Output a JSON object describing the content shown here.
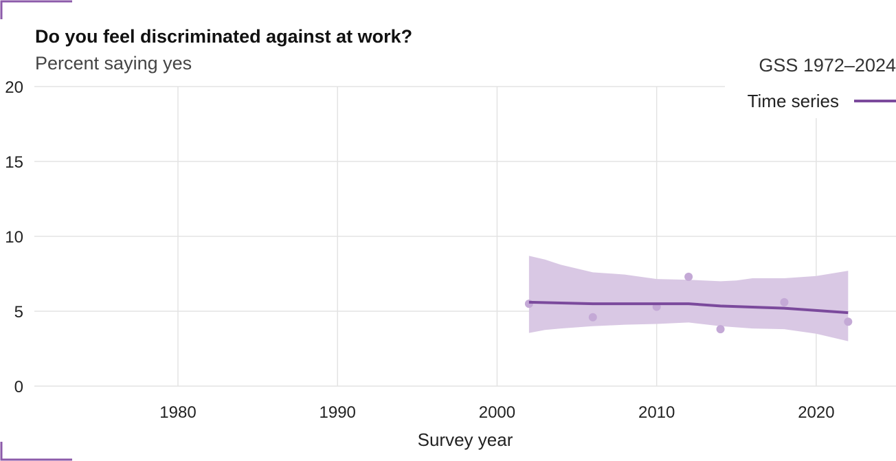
{
  "chart_data": {
    "type": "line",
    "title": "Do you feel discriminated against at work?",
    "subtitle": "Percent saying yes",
    "xlabel": "Survey year",
    "ylabel": "",
    "xlim": [
      1971,
      2025
    ],
    "ylim": [
      0,
      20
    ],
    "x_ticks": [
      1980,
      1990,
      2000,
      2010,
      2020
    ],
    "y_ticks": [
      0,
      5,
      10,
      15,
      20
    ],
    "legend": {
      "title": "GSS 1972–2024",
      "entries": [
        {
          "label": "Time series"
        }
      ],
      "position": "top-right"
    },
    "series": [
      {
        "name": "Time series",
        "color": "#7b4a9c",
        "points": [
          {
            "x": 2002,
            "y": 5.5
          },
          {
            "x": 2006,
            "y": 4.6
          },
          {
            "x": 2010,
            "y": 5.3
          },
          {
            "x": 2012,
            "y": 7.3
          },
          {
            "x": 2014,
            "y": 3.8
          },
          {
            "x": 2018,
            "y": 5.6
          },
          {
            "x": 2022,
            "y": 4.3
          }
        ],
        "trend": [
          {
            "x": 2002,
            "y": 5.6
          },
          {
            "x": 2006,
            "y": 5.5
          },
          {
            "x": 2010,
            "y": 5.5
          },
          {
            "x": 2012,
            "y": 5.5
          },
          {
            "x": 2014,
            "y": 5.35
          },
          {
            "x": 2018,
            "y": 5.2
          },
          {
            "x": 2022,
            "y": 4.9
          }
        ],
        "band_upper": [
          {
            "x": 2002,
            "y": 8.7
          },
          {
            "x": 2003,
            "y": 8.45
          },
          {
            "x": 2004,
            "y": 8.1
          },
          {
            "x": 2006,
            "y": 7.6
          },
          {
            "x": 2008,
            "y": 7.45
          },
          {
            "x": 2010,
            "y": 7.15
          },
          {
            "x": 2012,
            "y": 7.1
          },
          {
            "x": 2014,
            "y": 7.0
          },
          {
            "x": 2015,
            "y": 7.05
          },
          {
            "x": 2016,
            "y": 7.2
          },
          {
            "x": 2018,
            "y": 7.2
          },
          {
            "x": 2020,
            "y": 7.35
          },
          {
            "x": 2022,
            "y": 7.7
          }
        ],
        "band_lower": [
          {
            "x": 2002,
            "y": 3.55
          },
          {
            "x": 2003,
            "y": 3.75
          },
          {
            "x": 2004,
            "y": 3.85
          },
          {
            "x": 2006,
            "y": 4.0
          },
          {
            "x": 2008,
            "y": 4.1
          },
          {
            "x": 2010,
            "y": 4.15
          },
          {
            "x": 2012,
            "y": 4.25
          },
          {
            "x": 2014,
            "y": 4.0
          },
          {
            "x": 2016,
            "y": 3.85
          },
          {
            "x": 2018,
            "y": 3.8
          },
          {
            "x": 2020,
            "y": 3.5
          },
          {
            "x": 2022,
            "y": 3.0
          }
        ]
      }
    ],
    "colors": {
      "accent": "#7b4a9c",
      "band": "#d9c8e4",
      "point": "#c4a9d6",
      "corner": "#8c5aaa"
    },
    "grid": true
  }
}
